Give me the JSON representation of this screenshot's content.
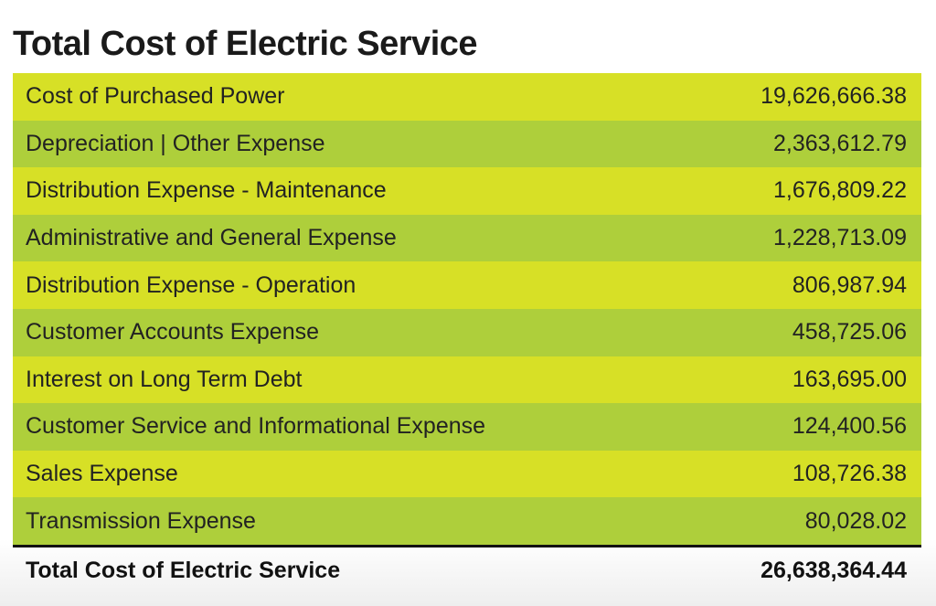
{
  "title": "Total Cost of Electric Service",
  "colors": {
    "row_odd": "#d7e026",
    "row_even": "#aecf3b",
    "text": "#222222"
  },
  "chart_data": {
    "type": "table",
    "title": "Total Cost of Electric Service",
    "rows": [
      {
        "label": "Cost of Purchased Power",
        "value": "19,626,666.38"
      },
      {
        "label": "Depreciation | Other Expense",
        "value": "2,363,612.79"
      },
      {
        "label": "Distribution Expense - Maintenance",
        "value": "1,676,809.22"
      },
      {
        "label": "Administrative and General Expense",
        "value": "1,228,713.09"
      },
      {
        "label": "Distribution Expense - Operation",
        "value": "806,987.94"
      },
      {
        "label": "Customer Accounts Expense",
        "value": "458,725.06"
      },
      {
        "label": "Interest on Long Term Debt",
        "value": "163,695.00"
      },
      {
        "label": "Customer Service and Informational Expense",
        "value": "124,400.56"
      },
      {
        "label": "Sales Expense",
        "value": "108,726.38"
      },
      {
        "label": "Transmission Expense",
        "value": "80,028.02"
      }
    ],
    "total": {
      "label": "Total Cost of Electric Service",
      "value": "26,638,364.44"
    }
  }
}
